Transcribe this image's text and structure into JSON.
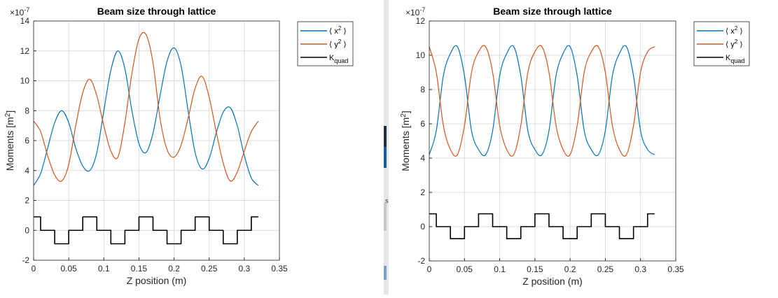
{
  "colors": {
    "series_x2": "#0072BD",
    "series_y2": "#D95319",
    "series_kquad": "#000000",
    "grid": "#dcdcdc",
    "axis": "#262626"
  },
  "legend": {
    "x2": {
      "open": "⟨",
      "base": " x",
      "sup": "2",
      "close": " ⟩"
    },
    "y2": {
      "open": "⟨",
      "base": " y",
      "sup": "2",
      "close": " ⟩"
    },
    "kquad": {
      "base": "K",
      "sub": "quad"
    }
  },
  "chart_data": [
    {
      "type": "line",
      "title": "Beam size through lattice",
      "xlabel": "Z position (m)",
      "ylabel": {
        "base": "Moments [m",
        "sup": "2",
        "close": "]"
      },
      "exponent": {
        "base": "×10",
        "sup": "-7"
      },
      "xlim": [
        0,
        0.35
      ],
      "ylim": [
        -2,
        14
      ],
      "xticks": [
        "0",
        "0.05",
        "0.1",
        "0.15",
        "0.2",
        "0.25",
        "0.3",
        "0.35"
      ],
      "yticks": [
        "-2",
        "0",
        "2",
        "4",
        "6",
        "8",
        "10",
        "12",
        "14"
      ],
      "grid": true,
      "legend_position": "outside-top-right",
      "series": [
        {
          "key": "x2",
          "x": [
            0,
            0.01,
            0.02,
            0.03,
            0.04,
            0.05,
            0.06,
            0.07,
            0.08,
            0.09,
            0.1,
            0.11,
            0.12,
            0.13,
            0.14,
            0.15,
            0.16,
            0.17,
            0.18,
            0.19,
            0.2,
            0.21,
            0.22,
            0.23,
            0.24,
            0.25,
            0.26,
            0.27,
            0.28,
            0.29,
            0.3,
            0.31,
            0.32
          ],
          "y": [
            3.0,
            3.8,
            5.5,
            7.2,
            8.0,
            7.2,
            5.5,
            4.3,
            4.0,
            5.2,
            8.0,
            10.7,
            12.0,
            10.8,
            8.0,
            5.8,
            5.2,
            6.5,
            9.0,
            11.3,
            12.2,
            11.0,
            8.0,
            5.2,
            4.1,
            4.8,
            6.5,
            7.9,
            8.2,
            7.0,
            5.0,
            3.5,
            3.0
          ]
        },
        {
          "key": "y2",
          "x": [
            0,
            0.01,
            0.02,
            0.03,
            0.04,
            0.05,
            0.06,
            0.07,
            0.08,
            0.09,
            0.1,
            0.11,
            0.12,
            0.13,
            0.14,
            0.15,
            0.16,
            0.17,
            0.18,
            0.19,
            0.2,
            0.21,
            0.22,
            0.23,
            0.24,
            0.25,
            0.26,
            0.27,
            0.28,
            0.29,
            0.3,
            0.31,
            0.32
          ],
          "y": [
            7.3,
            6.6,
            5.0,
            3.7,
            3.3,
            4.4,
            7.0,
            9.2,
            10.1,
            9.0,
            7.0,
            5.3,
            4.9,
            7.2,
            10.5,
            12.8,
            13.1,
            11.2,
            7.5,
            5.4,
            4.9,
            5.7,
            7.5,
            9.5,
            10.3,
            8.9,
            6.6,
            4.5,
            3.3,
            3.9,
            5.3,
            6.6,
            7.3
          ]
        },
        {
          "key": "kquad",
          "step": true,
          "x": [
            0,
            0.01,
            0.01,
            0.03,
            0.03,
            0.05,
            0.05,
            0.07,
            0.07,
            0.09,
            0.09,
            0.11,
            0.11,
            0.13,
            0.13,
            0.15,
            0.15,
            0.17,
            0.17,
            0.19,
            0.19,
            0.21,
            0.21,
            0.23,
            0.23,
            0.25,
            0.25,
            0.27,
            0.27,
            0.29,
            0.29,
            0.31,
            0.31,
            0.32
          ],
          "y": [
            0.9,
            0.9,
            0,
            0,
            -0.9,
            -0.9,
            0,
            0,
            0.9,
            0.9,
            0,
            0,
            -0.9,
            -0.9,
            0,
            0,
            0.9,
            0.9,
            0,
            0,
            -0.9,
            -0.9,
            0,
            0,
            0.9,
            0.9,
            0,
            0,
            -0.9,
            -0.9,
            0,
            0,
            0.9,
            0.9
          ]
        }
      ]
    },
    {
      "type": "line",
      "title": "Beam size through lattice",
      "xlabel": "Z position (m)",
      "ylabel": {
        "base": "Moments [m",
        "sup": "2",
        "close": "]"
      },
      "exponent": {
        "base": "×10",
        "sup": "-7"
      },
      "xlim": [
        0,
        0.35
      ],
      "ylim": [
        -2,
        12
      ],
      "xticks": [
        "0",
        "0.05",
        "0.1",
        "0.15",
        "0.2",
        "0.25",
        "0.3",
        "0.35"
      ],
      "yticks": [
        "-2",
        "0",
        "2",
        "4",
        "6",
        "8",
        "10",
        "12"
      ],
      "grid": true,
      "legend_position": "outside-top-right",
      "series": [
        {
          "key": "x2",
          "x": [
            0,
            0.01,
            0.02,
            0.03,
            0.04,
            0.05,
            0.06,
            0.07,
            0.08,
            0.09,
            0.1,
            0.11,
            0.12,
            0.13,
            0.14,
            0.15,
            0.16,
            0.17,
            0.18,
            0.19,
            0.2,
            0.21,
            0.22,
            0.23,
            0.24,
            0.25,
            0.26,
            0.27,
            0.28,
            0.29,
            0.3,
            0.31,
            0.32
          ],
          "y": [
            4.2,
            5.6,
            8.8,
            10.1,
            10.5,
            8.8,
            5.6,
            4.5,
            4.2,
            5.6,
            8.8,
            10.1,
            10.5,
            8.8,
            5.6,
            4.5,
            4.2,
            5.6,
            8.8,
            10.1,
            10.5,
            8.8,
            5.6,
            4.5,
            4.2,
            5.6,
            8.8,
            10.1,
            10.5,
            8.8,
            5.6,
            4.5,
            4.2
          ]
        },
        {
          "key": "y2",
          "x": [
            0,
            0.01,
            0.02,
            0.03,
            0.04,
            0.05,
            0.06,
            0.07,
            0.08,
            0.09,
            0.1,
            0.11,
            0.12,
            0.13,
            0.14,
            0.15,
            0.16,
            0.17,
            0.18,
            0.19,
            0.2,
            0.21,
            0.22,
            0.23,
            0.24,
            0.25,
            0.26,
            0.27,
            0.28,
            0.29,
            0.3,
            0.31,
            0.32
          ],
          "y": [
            10.5,
            9.0,
            5.9,
            4.5,
            4.2,
            5.9,
            9.0,
            10.2,
            10.5,
            9.0,
            5.9,
            4.5,
            4.2,
            5.9,
            9.0,
            10.2,
            10.5,
            9.0,
            5.9,
            4.5,
            4.2,
            5.9,
            9.0,
            10.2,
            10.5,
            9.0,
            5.9,
            4.5,
            4.2,
            5.9,
            9.0,
            10.2,
            10.5
          ]
        },
        {
          "key": "kquad",
          "step": true,
          "x": [
            0,
            0.01,
            0.01,
            0.03,
            0.03,
            0.05,
            0.05,
            0.07,
            0.07,
            0.09,
            0.09,
            0.11,
            0.11,
            0.13,
            0.13,
            0.15,
            0.15,
            0.17,
            0.17,
            0.19,
            0.19,
            0.21,
            0.21,
            0.23,
            0.23,
            0.25,
            0.25,
            0.27,
            0.27,
            0.29,
            0.29,
            0.31,
            0.31,
            0.32
          ],
          "y": [
            0.75,
            0.75,
            0,
            0,
            -0.7,
            -0.7,
            0,
            0,
            0.75,
            0.75,
            0,
            0,
            -0.7,
            -0.7,
            0,
            0,
            0.75,
            0.75,
            0,
            0,
            -0.7,
            -0.7,
            0,
            0,
            0.75,
            0.75,
            0,
            0,
            -0.7,
            -0.7,
            0,
            0,
            0.75,
            0.75
          ]
        }
      ]
    }
  ]
}
